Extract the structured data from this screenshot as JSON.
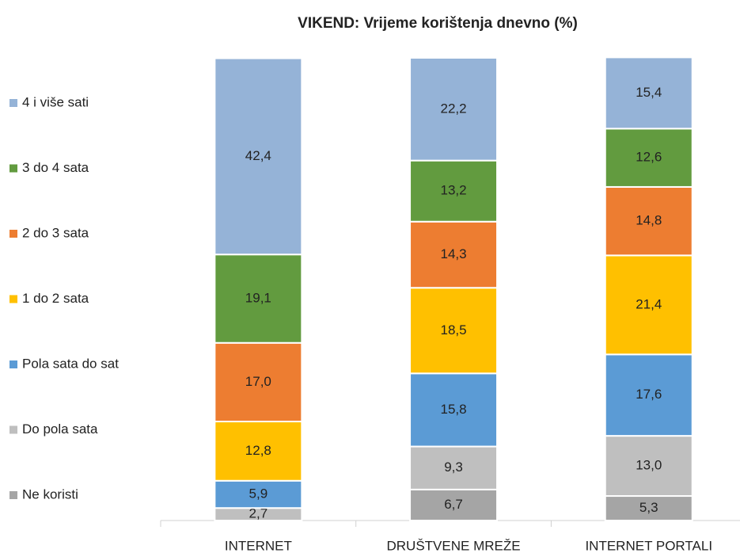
{
  "chart_data": {
    "type": "stacked_bar",
    "title": "VIKEND: Vrijeme korištenja dnevno (%)",
    "categories": [
      "INTERNET",
      "DRUŠTVENE MREŽE",
      "INTERNET PORTALI"
    ],
    "ylim": [
      0,
      100
    ],
    "legend": "left",
    "series": [
      {
        "name": "Ne koristi",
        "color": "#a5a5a5",
        "values": [
          null,
          6.7,
          5.3
        ],
        "value_labels": [
          null,
          "6,7",
          "5,3"
        ]
      },
      {
        "name": "Do pola sata",
        "color": "#bfbfbf",
        "values": [
          2.7,
          9.3,
          13.0
        ],
        "value_labels": [
          "2,7",
          "9,3",
          "13,0"
        ]
      },
      {
        "name": "Pola sata do sat",
        "color": "#5b9bd5",
        "values": [
          5.9,
          15.8,
          17.6
        ],
        "value_labels": [
          "5,9",
          "15,8",
          "17,6"
        ]
      },
      {
        "name": "1 do 2 sata",
        "color": "#ffc000",
        "values": [
          12.8,
          18.5,
          21.4
        ],
        "value_labels": [
          "12,8",
          "18,5",
          "21,4"
        ]
      },
      {
        "name": "2 do 3 sata",
        "color": "#ed7d31",
        "values": [
          17.0,
          14.3,
          14.8
        ],
        "value_labels": [
          "17,0",
          "14,3",
          "14,8"
        ]
      },
      {
        "name": "3 do 4 sata",
        "color": "#629b3f",
        "values": [
          19.1,
          13.2,
          12.6
        ],
        "value_labels": [
          "19,1",
          "13,2",
          "12,6"
        ]
      },
      {
        "name": "4 i više sati",
        "color": "#95b3d7",
        "values": [
          42.4,
          22.2,
          15.4
        ],
        "value_labels": [
          "42,4",
          "22,2",
          "15,4"
        ]
      }
    ]
  }
}
